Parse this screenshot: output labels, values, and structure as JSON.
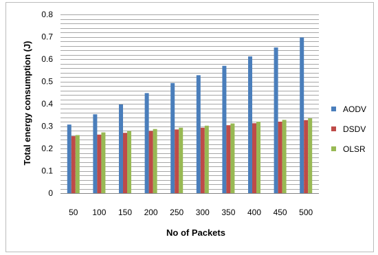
{
  "chart_data": {
    "type": "bar",
    "title": "",
    "xlabel": "No of Packets",
    "ylabel": "Total energy consumption (J)",
    "ylim": [
      0,
      0.8
    ],
    "y_major_ticks": [
      "0",
      "0.1",
      "0.2",
      "0.3",
      "0.4",
      "0.5",
      "0.6",
      "0.7",
      "0.8"
    ],
    "y_minor_step": 0.02,
    "grid": true,
    "legend_position": "right",
    "categories": [
      "50",
      "100",
      "150",
      "200",
      "250",
      "300",
      "350",
      "400",
      "450",
      "500"
    ],
    "series": [
      {
        "name": "AODV",
        "color": "#4a7ebb",
        "values": [
          0.307,
          0.353,
          0.397,
          0.448,
          0.493,
          0.528,
          0.57,
          0.612,
          0.652,
          0.697
        ]
      },
      {
        "name": "DSDV",
        "color": "#be4b48",
        "values": [
          0.255,
          0.262,
          0.27,
          0.278,
          0.285,
          0.293,
          0.304,
          0.313,
          0.32,
          0.327
        ]
      },
      {
        "name": "OLSR",
        "color": "#98b954",
        "values": [
          0.26,
          0.272,
          0.278,
          0.287,
          0.293,
          0.302,
          0.312,
          0.32,
          0.328,
          0.335
        ]
      }
    ]
  }
}
